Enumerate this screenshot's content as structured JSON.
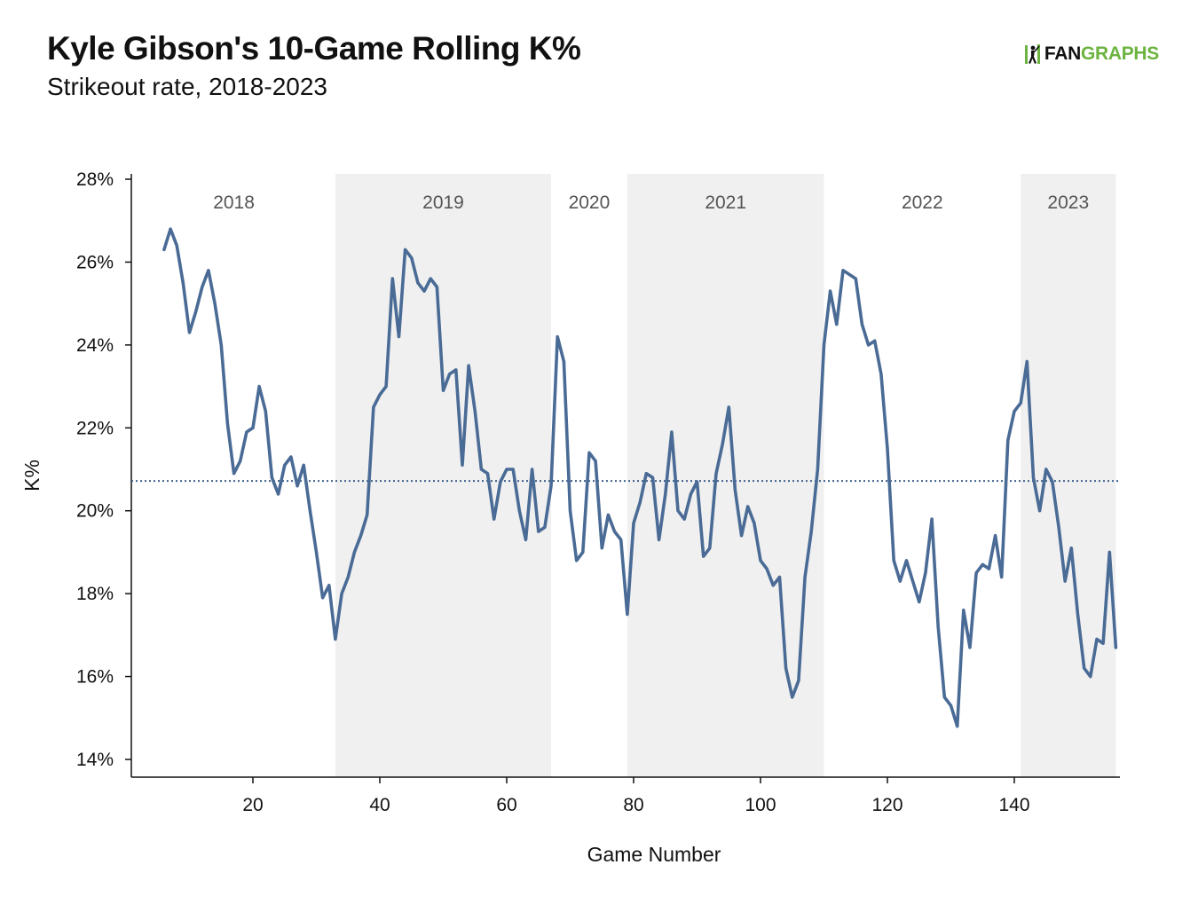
{
  "header": {
    "title": "Kyle Gibson's 10-Game Rolling K%",
    "subtitle": "Strikeout rate, 2018-2023",
    "logo_text_1": "FAN",
    "logo_text_2": "GRAPHS"
  },
  "colors": {
    "line": "#4a6b95",
    "reference": "#3f5f8a",
    "band": "#f0f0f0",
    "brand_green": "#6cb33f"
  },
  "chart_data": {
    "type": "line",
    "title": "Kyle Gibson's 10-Game Rolling K%",
    "subtitle": "Strikeout rate, 2018-2023",
    "xlabel": "Game Number",
    "ylabel": "K%",
    "xlim": [
      1,
      156
    ],
    "ylim": [
      14,
      28
    ],
    "xticks": [
      20,
      40,
      60,
      80,
      100,
      120,
      140
    ],
    "yticks": [
      14,
      16,
      18,
      20,
      22,
      24,
      26,
      28
    ],
    "ytick_suffix": "%",
    "grid": false,
    "reference_line": {
      "y": 20.72,
      "style": "dotted"
    },
    "seasons": [
      {
        "label": "2018",
        "start": 1,
        "end": 33,
        "shaded": false
      },
      {
        "label": "2019",
        "start": 33,
        "end": 67,
        "shaded": true
      },
      {
        "label": "2020",
        "start": 67,
        "end": 79,
        "shaded": false
      },
      {
        "label": "2021",
        "start": 79,
        "end": 110,
        "shaded": true
      },
      {
        "label": "2022",
        "start": 110,
        "end": 141,
        "shaded": false
      },
      {
        "label": "2023",
        "start": 141,
        "end": 156,
        "shaded": true
      }
    ],
    "series": [
      {
        "x": [
          6,
          7,
          8,
          9,
          10,
          11,
          12,
          13,
          14,
          15,
          16,
          17,
          18,
          19,
          20,
          21,
          22,
          23,
          24,
          25,
          26,
          27,
          28,
          29,
          30,
          31,
          32,
          33,
          34,
          35,
          36,
          37,
          38,
          39,
          40,
          41,
          42,
          43,
          44,
          45,
          46,
          47,
          48,
          49,
          50,
          51,
          52,
          53,
          54,
          55,
          56,
          57,
          58,
          59,
          60,
          61,
          62,
          63,
          64,
          65,
          66,
          67,
          68,
          69,
          70,
          71,
          72,
          73,
          74,
          75,
          76,
          77,
          78,
          79,
          80,
          81,
          82,
          83,
          84,
          85,
          86,
          87,
          88,
          89,
          90,
          91,
          92,
          93,
          94,
          95,
          96,
          97,
          98,
          99,
          100,
          101,
          102,
          103,
          104,
          105,
          106,
          107,
          108,
          109,
          110,
          111,
          112,
          113,
          114,
          115,
          116,
          117,
          118,
          119,
          120,
          121,
          122,
          123,
          124,
          125,
          126,
          127,
          128,
          129,
          130,
          131,
          132,
          133,
          134,
          135,
          136,
          137,
          138,
          139,
          140,
          141,
          142,
          143,
          144,
          145,
          146,
          147,
          148,
          149,
          150,
          151,
          152,
          153,
          154,
          155,
          156
        ],
        "y": [
          26.3,
          26.8,
          26.4,
          25.5,
          24.3,
          24.8,
          25.4,
          25.8,
          25.0,
          24.0,
          22.1,
          20.9,
          21.2,
          21.9,
          22.0,
          23.0,
          22.4,
          20.8,
          20.4,
          21.1,
          21.3,
          20.6,
          21.1,
          20.0,
          19.0,
          17.9,
          18.2,
          16.9,
          18.0,
          18.4,
          19.0,
          19.4,
          19.9,
          22.5,
          22.8,
          23.0,
          25.6,
          24.2,
          26.3,
          26.1,
          25.5,
          25.3,
          25.6,
          25.4,
          22.9,
          23.3,
          23.4,
          21.1,
          23.5,
          22.4,
          21.0,
          20.9,
          19.8,
          20.7,
          21.0,
          21.0,
          20.0,
          19.3,
          21.0,
          19.5,
          19.6,
          20.6,
          24.2,
          23.6,
          20.0,
          18.8,
          19.0,
          21.4,
          21.2,
          19.1,
          19.9,
          19.5,
          19.3,
          17.5,
          19.7,
          20.2,
          20.9,
          20.8,
          19.3,
          20.4,
          21.9,
          20.0,
          19.8,
          20.4,
          20.7,
          18.9,
          19.1,
          20.9,
          21.6,
          22.5,
          20.5,
          19.4,
          20.1,
          19.7,
          18.8,
          18.6,
          18.2,
          18.4,
          16.2,
          15.5,
          15.9,
          18.4,
          19.5,
          21.0,
          24.0,
          25.3,
          24.5,
          25.8,
          25.7,
          25.6,
          24.5,
          24.0,
          24.1,
          23.3,
          21.5,
          18.8,
          18.3,
          18.8,
          18.3,
          17.8,
          18.5,
          19.8,
          17.2,
          15.5,
          15.3,
          14.8,
          17.6,
          16.7,
          18.5,
          18.7,
          18.6,
          19.4,
          18.4,
          21.7,
          22.4,
          22.6,
          23.6,
          20.8,
          20.0,
          21.0,
          20.7,
          19.6,
          18.3,
          19.1,
          17.5,
          16.2,
          16.0,
          16.9,
          16.8,
          19.0,
          16.7
        ]
      }
    ]
  }
}
